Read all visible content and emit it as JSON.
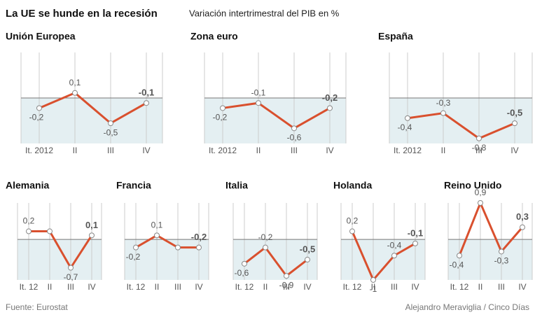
{
  "title": "La UE se hunde en la recesión",
  "subtitle": "Variación intertrimestral del PIB en %",
  "source": "Fuente: Eurostat",
  "credit": "Alejandro Meraviglia / Cinco Días",
  "chart_data": [
    {
      "type": "line",
      "title": "Unión Europea",
      "categories": [
        "It. 2012",
        "II",
        "III",
        "IV"
      ],
      "values": [
        -0.2,
        0.1,
        -0.5,
        -0.1
      ],
      "value_labels": [
        "-0,2",
        "0,1",
        "-0,5",
        "-0,1"
      ],
      "color": "#d9502e",
      "ylim": [
        -0.9,
        0.9
      ]
    },
    {
      "type": "line",
      "title": "Zona euro",
      "categories": [
        "It. 2012",
        "II",
        "III",
        "IV"
      ],
      "values": [
        -0.2,
        -0.1,
        -0.6,
        -0.2
      ],
      "value_labels": [
        "-0,2",
        "-0,1",
        "-0,6",
        "-0,2"
      ],
      "color": "#d9502e",
      "ylim": [
        -0.9,
        0.9
      ]
    },
    {
      "type": "line",
      "title": "España",
      "categories": [
        "It. 2012",
        "II",
        "III",
        "IV"
      ],
      "values": [
        -0.4,
        -0.3,
        -0.8,
        -0.5
      ],
      "value_labels": [
        "-0,4",
        "-0,3",
        "-0,8",
        "-0,5"
      ],
      "color": "#d9502e",
      "ylim": [
        -0.9,
        0.9
      ]
    },
    {
      "type": "line",
      "title": "Alemania",
      "categories": [
        "It. 12",
        "II",
        "III",
        "IV"
      ],
      "values": [
        0.2,
        0.2,
        -0.7,
        0.1
      ],
      "value_labels": [
        "0,2",
        null,
        "-0,7",
        "0,1"
      ],
      "color": "#d9502e",
      "ylim": [
        -1,
        0.9
      ]
    },
    {
      "type": "line",
      "title": "Francia",
      "categories": [
        "It. 12",
        "II",
        "III",
        "IV"
      ],
      "values": [
        -0.2,
        0.1,
        -0.2,
        -0.2
      ],
      "value_labels": [
        "-0,2",
        "0,1",
        null,
        "-0,2"
      ],
      "color": "#d9502e",
      "ylim": [
        -1,
        0.9
      ]
    },
    {
      "type": "line",
      "title": "Italia",
      "categories": [
        "It. 12",
        "II",
        "III",
        "IV"
      ],
      "values": [
        -0.6,
        -0.2,
        -0.9,
        -0.5
      ],
      "value_labels": [
        "-0,6",
        "-0,2",
        "-0,9",
        "-0,5"
      ],
      "color": "#d9502e",
      "ylim": [
        -1,
        0.9
      ]
    },
    {
      "type": "line",
      "title": "Holanda",
      "categories": [
        "It. 12",
        "II",
        "III",
        "IV"
      ],
      "values": [
        0.2,
        -1,
        -0.4,
        -0.1
      ],
      "value_labels": [
        "0,2",
        "-1",
        "-0,4",
        "-0,1"
      ],
      "color": "#d9502e",
      "ylim": [
        -1,
        0.9
      ]
    },
    {
      "type": "line",
      "title": "Reino Unido",
      "categories": [
        "It. 12",
        "II",
        "III",
        "IV"
      ],
      "values": [
        -0.4,
        0.9,
        -0.3,
        0.3
      ],
      "value_labels": [
        "-0,4",
        "0,9",
        "-0,3",
        "0,3"
      ],
      "color": "#d9502e",
      "ylim": [
        -1,
        0.9
      ]
    }
  ]
}
